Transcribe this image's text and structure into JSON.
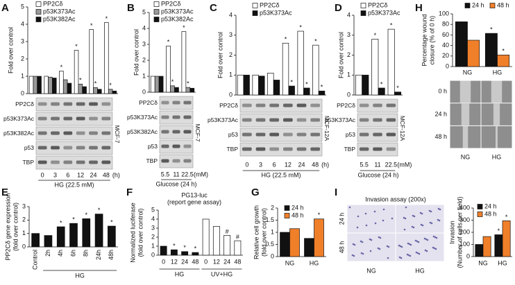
{
  "chart_data": [
    {
      "type": "bar",
      "panel": "A",
      "ylabel": [
        "Fold over control"
      ],
      "categories": [
        "0",
        "3",
        "6",
        "12",
        "24",
        "48"
      ],
      "x_unit": "(h)",
      "series": [
        {
          "name": "PP2Cδ",
          "color": "#ffffff",
          "values": [
            1,
            1,
            1.3,
            2.5,
            3.7,
            4.1
          ],
          "sig": [
            null,
            null,
            "*",
            "*",
            "*",
            "*"
          ]
        },
        {
          "name": "p53K373Ac",
          "color": "#9a9a9a",
          "values": [
            1,
            0.95,
            0.8,
            0.55,
            0.35,
            0.25
          ],
          "sig": [
            null,
            null,
            null,
            "*",
            "*",
            "*"
          ]
        },
        {
          "name": "p53K382Ac",
          "color": "#111111",
          "values": [
            1,
            0.9,
            0.6,
            0.4,
            0.25,
            0.15
          ],
          "sig": [
            null,
            null,
            null,
            null,
            null,
            null
          ]
        }
      ],
      "ylim": [
        0,
        5
      ],
      "yticks": [
        0,
        1,
        2,
        3,
        4,
        5
      ],
      "blot_rows": [
        "PP2Cδ",
        "p53K373Ac",
        "p53K382Ac",
        "p53",
        "TBP"
      ],
      "blot_side": "MCF-7",
      "xlabel": "HG (22.5 mM)"
    },
    {
      "type": "bar",
      "panel": "B",
      "ylabel": [
        "Fold over control"
      ],
      "categories": [
        "5.5",
        "11",
        "22.5"
      ],
      "x_unit": "(mM)",
      "series": [
        {
          "name": "PP2Cδ",
          "color": "#ffffff",
          "values": [
            1,
            2.9,
            3.8
          ],
          "sig": [
            null,
            "*",
            "*"
          ]
        },
        {
          "name": "p53K373Ac",
          "color": "#9a9a9a",
          "values": [
            1,
            0.4,
            0.3
          ],
          "sig": [
            null,
            "*",
            "*"
          ]
        },
        {
          "name": "p53K382Ac",
          "color": "#111111",
          "values": [
            1,
            0.3,
            0.25
          ],
          "sig": [
            null,
            null,
            null
          ]
        }
      ],
      "ylim": [
        0,
        5
      ],
      "yticks": [
        0,
        1,
        2,
        3,
        4,
        5
      ],
      "blot_rows": [
        "PP2Cδ",
        "p53K373Ac",
        "p53K382Ac",
        "p53",
        "TBP"
      ],
      "blot_side": "MCF-7",
      "xlabel": "Glucose (24 h)"
    },
    {
      "type": "bar",
      "panel": "C",
      "ylabel": [
        "Fold over control"
      ],
      "categories": [
        "0",
        "3",
        "6",
        "12",
        "24",
        "48"
      ],
      "x_unit": "(h)",
      "series": [
        {
          "name": "PP2Cδ",
          "color": "#ffffff",
          "values": [
            1,
            1,
            1.1,
            2.6,
            3.2,
            2.5
          ],
          "sig": [
            null,
            null,
            null,
            "*",
            "*",
            "*"
          ]
        },
        {
          "name": "p53K373Ac",
          "color": "#111111",
          "values": [
            1,
            0.95,
            0.75,
            0.45,
            0.35,
            0.2
          ],
          "sig": [
            null,
            null,
            null,
            "*",
            "*",
            "*"
          ]
        }
      ],
      "ylim": [
        0,
        4
      ],
      "yticks": [
        0,
        1,
        2,
        3,
        4
      ],
      "blot_rows": [
        "PP2Cδ",
        "p53K373Ac",
        "p53",
        "TBP"
      ],
      "blot_side": "MCF-12A",
      "xlabel": "HG (22.5 mM)"
    },
    {
      "type": "bar",
      "panel": "D",
      "ylabel": [
        "Fold over control"
      ],
      "categories": [
        "5.5",
        "11",
        "22.5"
      ],
      "x_unit": "(mM)",
      "series": [
        {
          "name": "PP2Cδ",
          "color": "#ffffff",
          "values": [
            1,
            2.8,
            3.3
          ],
          "sig": [
            null,
            "*",
            "*"
          ]
        },
        {
          "name": "p53K373Ac",
          "color": "#111111",
          "values": [
            1,
            0.35,
            0.15
          ],
          "sig": [
            null,
            "*",
            "*"
          ]
        }
      ],
      "ylim": [
        0,
        4
      ],
      "yticks": [
        0,
        1,
        2,
        3,
        4
      ],
      "blot_rows": [
        "PP2Cδ",
        "p53K373Ac",
        "p53",
        "TBP"
      ],
      "blot_side": "MCF-12A",
      "xlabel": "Glucose (24 h)"
    },
    {
      "type": "bar",
      "panel": "H",
      "ylabel": [
        "Percentage wound",
        "closure (% of 0 h)"
      ],
      "categories": [
        "NG",
        "HG"
      ],
      "series": [
        {
          "name": "24 h",
          "color": "#111111",
          "values": [
            85,
            63
          ],
          "sig": [
            null,
            "*"
          ]
        },
        {
          "name": "48 h",
          "color": "#f07f2a",
          "values": [
            50,
            22
          ],
          "sig": [
            null,
            "*"
          ]
        }
      ],
      "ylim": [
        0,
        100
      ],
      "yticks": [
        0,
        20,
        40,
        60,
        80,
        100
      ],
      "image_rows": [
        "0 h",
        "24 h",
        "48 h"
      ],
      "image_cols": [
        "NG",
        "HG"
      ]
    },
    {
      "type": "bar",
      "panel": "E",
      "ylabel": [
        "PP2Cδ gene expression",
        "(fold over control)"
      ],
      "categories": [
        "Control",
        "2h",
        "4h",
        "6h",
        "8h",
        "24h",
        "48h"
      ],
      "color": "#111111",
      "values": [
        1,
        0.85,
        1.5,
        1.75,
        2.1,
        2.45,
        1.55
      ],
      "sig": [
        null,
        null,
        "*",
        "*",
        "*",
        "*",
        "*"
      ],
      "ylim": [
        0,
        3
      ],
      "yticks": [
        0,
        1,
        2,
        3
      ],
      "groups": [
        "HG"
      ]
    },
    {
      "type": "bar",
      "panel": "F",
      "title": [
        "PG13-luc",
        "(report gene assay)"
      ],
      "ylabel": [
        "Normalized luciferase",
        "(fold over control)"
      ],
      "categories": [
        "0",
        "12",
        "24",
        "48",
        "0",
        "12",
        "24",
        "48"
      ],
      "colors": [
        "#111111",
        "#111111",
        "#111111",
        "#111111",
        "#ffffff",
        "#ffffff",
        "#ffffff",
        "#ffffff"
      ],
      "values": [
        1,
        0.6,
        0.4,
        0.3,
        4,
        3.2,
        2.2,
        1.6
      ],
      "sig": [
        null,
        "*",
        "*",
        "*",
        null,
        null,
        "#",
        "#"
      ],
      "ylim": [
        0,
        5
      ],
      "yticks": [
        0,
        1,
        2,
        3,
        4,
        5
      ],
      "groups": [
        "HG",
        "UV+HG"
      ]
    },
    {
      "type": "bar",
      "panel": "G",
      "ylabel": [
        "Relative cell growth",
        "(fold over control)"
      ],
      "categories": [
        "NG",
        "HG"
      ],
      "series": [
        {
          "name": "24 h",
          "color": "#111111",
          "values": [
            1,
            0.75
          ],
          "sig": [
            null,
            null
          ]
        },
        {
          "name": "48 h",
          "color": "#f07f2a",
          "values": [
            1.15,
            1.55
          ],
          "sig": [
            null,
            "*"
          ]
        }
      ],
      "ylim": [
        0,
        2
      ],
      "yticks": [
        0,
        0.5,
        1,
        1.5,
        2
      ]
    },
    {
      "type": "bar",
      "panel": "I",
      "ylabel": [
        "Invasion",
        "(Number of cells per field)"
      ],
      "categories": [
        "NG",
        "HG"
      ],
      "series": [
        {
          "name": "24 h",
          "color": "#111111",
          "values": [
            100,
            180
          ],
          "sig": [
            null,
            "*"
          ]
        },
        {
          "name": "48 h",
          "color": "#f07f2a",
          "values": [
            165,
            295
          ],
          "sig": [
            null,
            "*"
          ]
        }
      ],
      "ylim": [
        0,
        400
      ],
      "yticks": [
        0,
        100,
        200,
        300,
        400
      ],
      "image_title": "Invasion assay (200x)",
      "image_rows": [
        "24 h",
        "48 h"
      ],
      "image_cols": [
        "NG",
        "HG"
      ]
    }
  ]
}
